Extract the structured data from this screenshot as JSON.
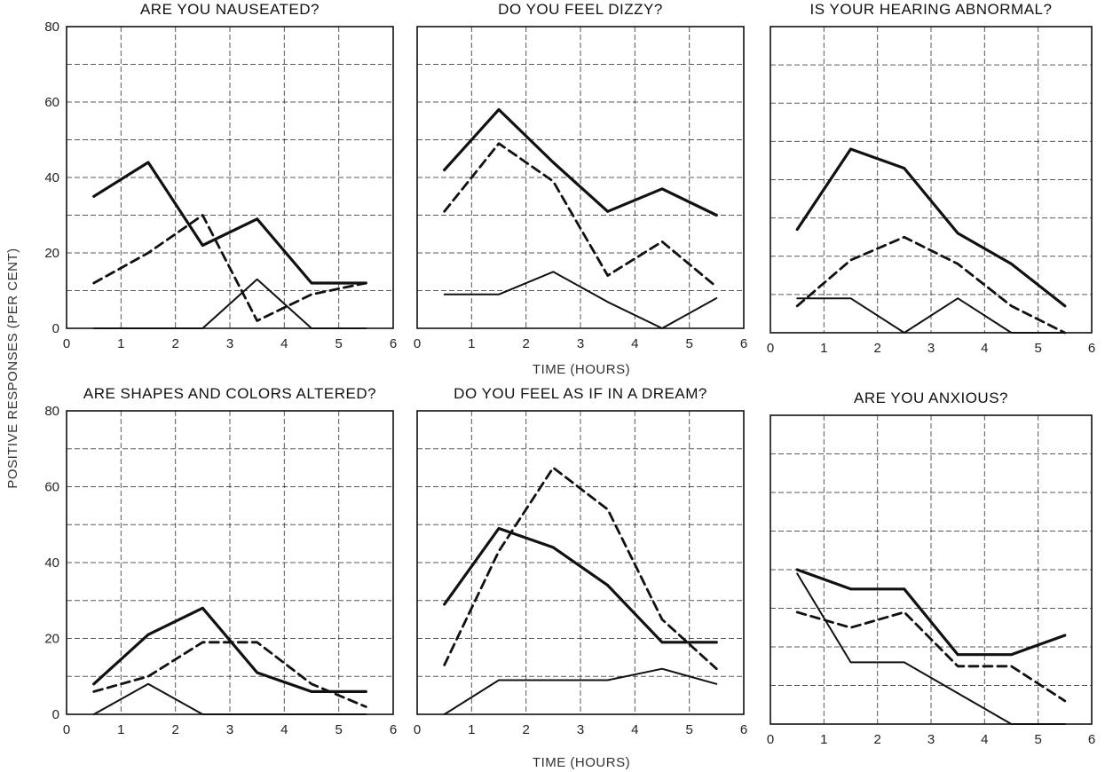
{
  "figure": {
    "ylabel": "POSITIVE RESPONSES (PER CENT)",
    "xlabel": "TIME (HOURS)"
  },
  "chart_data": [
    {
      "type": "line",
      "title": "ARE YOU NAUSEATED?",
      "xlim": [
        0,
        6
      ],
      "ylim": [
        0,
        80
      ],
      "xticks": [
        "0",
        "1",
        "2",
        "3",
        "4",
        "5",
        "6"
      ],
      "yticks": [
        "0",
        "20",
        "40",
        "60",
        "80"
      ],
      "grid": true,
      "x": [
        0.5,
        1.5,
        2.5,
        3.5,
        4.5,
        5.5
      ],
      "series": [
        {
          "style": "thick-solid",
          "values": [
            35,
            44,
            22,
            29,
            12,
            12
          ]
        },
        {
          "style": "dashed",
          "values": [
            12,
            20,
            30,
            2,
            9,
            12
          ]
        },
        {
          "style": "thin-solid",
          "values": [
            0,
            0,
            0,
            13,
            0,
            0
          ]
        }
      ]
    },
    {
      "type": "line",
      "title": "DO YOU FEEL DIZZY?",
      "xlim": [
        0,
        6
      ],
      "ylim": [
        0,
        80
      ],
      "xticks": [
        "0",
        "1",
        "2",
        "3",
        "4",
        "5",
        "6"
      ],
      "yticks": [],
      "grid": true,
      "x": [
        0.5,
        1.5,
        2.5,
        3.5,
        4.5,
        5.5
      ],
      "series": [
        {
          "style": "thick-solid",
          "values": [
            42,
            58,
            44,
            31,
            37,
            30
          ]
        },
        {
          "style": "dashed",
          "values": [
            31,
            49,
            39,
            14,
            23,
            11
          ]
        },
        {
          "style": "thin-solid",
          "values": [
            9,
            9,
            15,
            7,
            0,
            8
          ]
        }
      ]
    },
    {
      "type": "line",
      "title": "IS YOUR HEARING ABNORMAL?",
      "xlim": [
        0,
        6
      ],
      "ylim": [
        0,
        80
      ],
      "xticks": [
        "0",
        "1",
        "2",
        "3",
        "4",
        "5",
        "6"
      ],
      "yticks": [],
      "grid": true,
      "x": [
        0.5,
        1.5,
        2.5,
        3.5,
        4.5,
        5.5
      ],
      "series": [
        {
          "style": "thick-solid",
          "values": [
            27,
            48,
            43,
            26,
            18,
            7
          ]
        },
        {
          "style": "dashed",
          "values": [
            7,
            19,
            25,
            18,
            7,
            0
          ]
        },
        {
          "style": "thin-solid",
          "values": [
            9,
            9,
            0,
            9,
            0,
            0
          ]
        }
      ]
    },
    {
      "type": "line",
      "title": "ARE SHAPES AND COLORS ALTERED?",
      "xlim": [
        0,
        6
      ],
      "ylim": [
        0,
        80
      ],
      "xticks": [
        "0",
        "1",
        "2",
        "3",
        "4",
        "5",
        "6"
      ],
      "yticks": [
        "0",
        "20",
        "40",
        "60",
        "80"
      ],
      "grid": true,
      "x": [
        0.5,
        1.5,
        2.5,
        3.5,
        4.5,
        5.5
      ],
      "series": [
        {
          "style": "thick-solid",
          "values": [
            8,
            21,
            28,
            11,
            6,
            6
          ]
        },
        {
          "style": "dashed",
          "values": [
            6,
            10,
            19,
            19,
            8,
            2
          ]
        },
        {
          "style": "thin-solid",
          "values": [
            0,
            8,
            0,
            0,
            0,
            0
          ]
        }
      ]
    },
    {
      "type": "line",
      "title": "DO YOU FEEL AS IF IN A DREAM?",
      "xlim": [
        0,
        6
      ],
      "ylim": [
        0,
        80
      ],
      "xticks": [
        "0",
        "1",
        "2",
        "3",
        "4",
        "5",
        "6"
      ],
      "yticks": [],
      "grid": true,
      "x": [
        0.5,
        1.5,
        2.5,
        3.5,
        4.5,
        5.5
      ],
      "series": [
        {
          "style": "thick-solid",
          "values": [
            29,
            49,
            44,
            34,
            19,
            19
          ]
        },
        {
          "style": "dashed",
          "values": [
            13,
            43,
            65,
            54,
            25,
            12
          ]
        },
        {
          "style": "thin-solid",
          "values": [
            0,
            9,
            9,
            9,
            12,
            8
          ]
        }
      ]
    },
    {
      "type": "line",
      "title": "ARE YOU ANXIOUS?",
      "xlim": [
        0,
        6
      ],
      "ylim": [
        0,
        80
      ],
      "xticks": [
        "0",
        "1",
        "2",
        "3",
        "4",
        "5",
        "6"
      ],
      "yticks": [],
      "grid": true,
      "x": [
        0.5,
        1.5,
        2.5,
        3.5,
        4.5,
        5.5
      ],
      "series": [
        {
          "style": "thick-solid",
          "values": [
            40,
            35,
            35,
            18,
            18,
            23
          ]
        },
        {
          "style": "dashed",
          "values": [
            29,
            25,
            29,
            15,
            15,
            6
          ]
        },
        {
          "style": "thin-solid",
          "values": [
            39,
            16,
            16,
            8,
            0,
            0
          ]
        }
      ]
    }
  ]
}
